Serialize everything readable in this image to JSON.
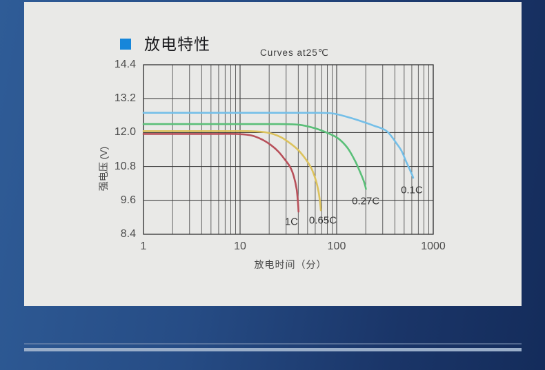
{
  "page": {
    "section_title": "放电特性",
    "accent_color": "#1686da",
    "card_color": "#e9e9e7",
    "background_colors": [
      "#2f5c97",
      "#142c5b"
    ],
    "footer_line_thin_color": "#7f94b5",
    "footer_line_thick_color": "#9aaec9"
  },
  "chart_data": {
    "type": "line",
    "title": "Curves at25℃",
    "xlabel": "放电时间（分）",
    "ylabel": "强电压 (V)",
    "x_scale": "log",
    "xlim": [
      1,
      1000
    ],
    "ylim": [
      8.4,
      14.4
    ],
    "x_ticks": [
      "1",
      "10",
      "100",
      "1000"
    ],
    "y_ticks": [
      "14.4",
      "13.2",
      "12.0",
      "10.8",
      "9.6",
      "8.4"
    ],
    "grid": "x: log decades with minor lines 2-9; y: major lines every 1.2 V",
    "grid_color": "#3d3d3d",
    "legend_position": "labels next to curve ends",
    "series": [
      {
        "name": "0.1C",
        "color": "#74bfe8",
        "flat_voltage": 12.7,
        "end_point": [
          620,
          10.4
        ],
        "label_anchor": {
          "x": 600,
          "v": 9.95
        },
        "points": [
          [
            1,
            12.7
          ],
          [
            20,
            12.7
          ],
          [
            60,
            12.7
          ],
          [
            90,
            12.68
          ],
          [
            130,
            12.55
          ],
          [
            180,
            12.4
          ],
          [
            240,
            12.25
          ],
          [
            330,
            12.05
          ],
          [
            420,
            11.6
          ],
          [
            470,
            11.35
          ],
          [
            520,
            11.0
          ],
          [
            570,
            10.7
          ],
          [
            605,
            10.5
          ],
          [
            620,
            10.4
          ]
        ]
      },
      {
        "name": "0.27C",
        "color": "#5abf78",
        "flat_voltage": 12.3,
        "end_point": [
          201,
          10.0
        ],
        "label_anchor": {
          "x": 200,
          "v": 9.57
        },
        "points": [
          [
            1,
            12.3
          ],
          [
            10,
            12.3
          ],
          [
            25,
            12.3
          ],
          [
            40,
            12.28
          ],
          [
            60,
            12.15
          ],
          [
            85,
            11.95
          ],
          [
            105,
            11.78
          ],
          [
            130,
            11.45
          ],
          [
            155,
            11.0
          ],
          [
            175,
            10.6
          ],
          [
            190,
            10.3
          ],
          [
            198,
            10.1
          ],
          [
            201,
            10.0
          ]
        ]
      },
      {
        "name": "0.65C",
        "color": "#dcc25c",
        "flat_voltage": 12.05,
        "end_point": [
          68.5,
          9.25
        ],
        "label_anchor": {
          "x": 72,
          "v": 8.9
        },
        "points": [
          [
            1,
            12.05
          ],
          [
            6,
            12.05
          ],
          [
            12,
            12.05
          ],
          [
            19,
            12.0
          ],
          [
            26,
            11.85
          ],
          [
            33,
            11.62
          ],
          [
            40,
            11.38
          ],
          [
            48,
            11.05
          ],
          [
            55,
            10.72
          ],
          [
            61,
            10.3
          ],
          [
            65,
            9.9
          ],
          [
            67.5,
            9.5
          ],
          [
            68.5,
            9.25
          ]
        ]
      },
      {
        "name": "1C",
        "color": "#b8505a",
        "flat_voltage": 11.95,
        "end_point": [
          40.3,
          9.2
        ],
        "label_anchor": {
          "x": 34,
          "v": 8.85
        },
        "points": [
          [
            1,
            11.95
          ],
          [
            5,
            11.95
          ],
          [
            9,
            11.95
          ],
          [
            13,
            11.9
          ],
          [
            17,
            11.75
          ],
          [
            21,
            11.55
          ],
          [
            25,
            11.32
          ],
          [
            29,
            11.05
          ],
          [
            33,
            10.78
          ],
          [
            36,
            10.45
          ],
          [
            38.5,
            10.0
          ],
          [
            39.8,
            9.5
          ],
          [
            40.3,
            9.2
          ]
        ]
      }
    ]
  }
}
